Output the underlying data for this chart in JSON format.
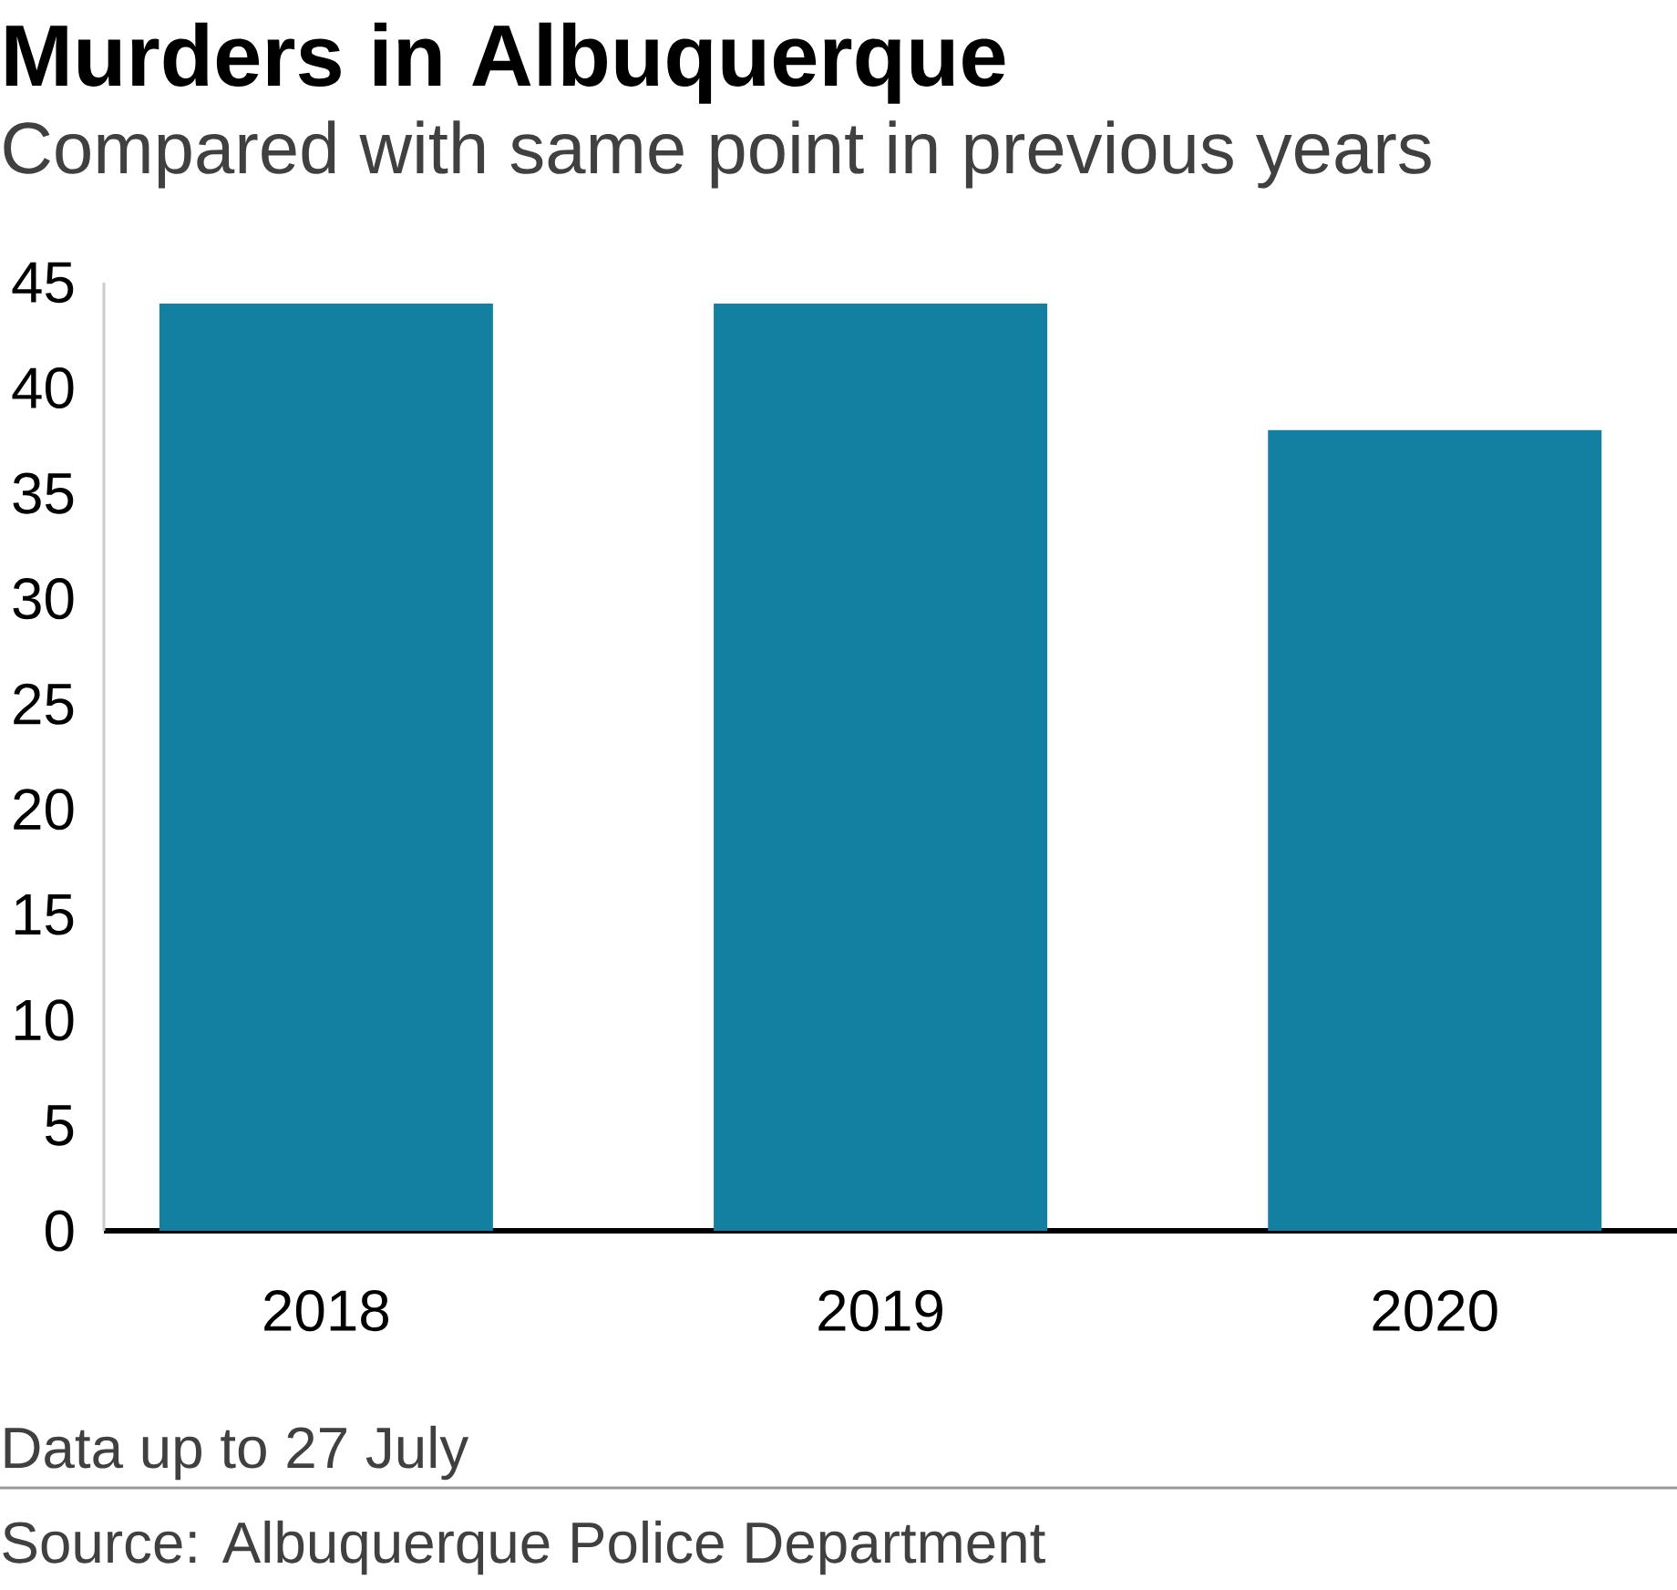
{
  "chart_data": {
    "type": "bar",
    "title": "Murders in Albuquerque",
    "subtitle": "Compared with same point in previous years",
    "categories": [
      "2018",
      "2019",
      "2020"
    ],
    "values": [
      44,
      44,
      38
    ],
    "color": "#1380a1",
    "ylim": [
      0,
      45
    ],
    "yticks": [
      0,
      5,
      10,
      15,
      20,
      25,
      30,
      35,
      40,
      45
    ],
    "annotations": [
      "Data up to 27 July",
      "Source: Albuquerque Police Department"
    ]
  }
}
